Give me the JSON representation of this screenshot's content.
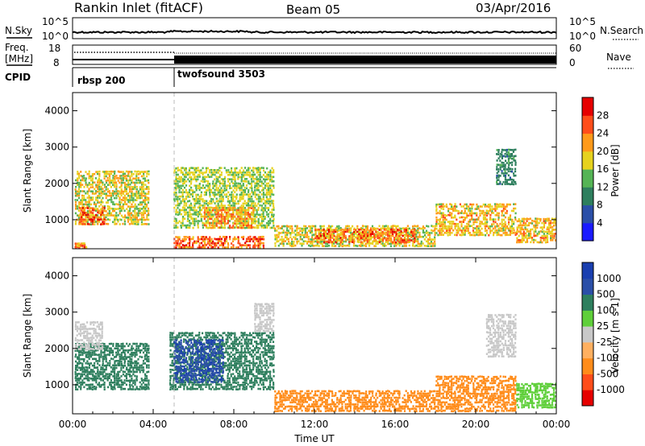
{
  "header": {
    "station": "Rankin Inlet (fitACF)",
    "beam": "Beam 05",
    "date": "03/Apr/2016"
  },
  "params_panel": {
    "left_labels": [
      "N.Sky",
      "Freq.",
      "[MHz]",
      "CPID"
    ],
    "right_labels": [
      "N.Search",
      "Nave"
    ],
    "left_ticks_top": [
      "10^5",
      "10^0"
    ],
    "right_ticks_top": [
      "10^5",
      "10^0"
    ],
    "left_ticks_freq": [
      "18",
      "8"
    ],
    "right_ticks_nave": [
      "60",
      "0"
    ],
    "cpid_labels": [
      "rbsp 200",
      "twofsound 3503"
    ],
    "cpid_switch_hour": 5.0
  },
  "chart_data": [
    {
      "type": "heatmap",
      "title": "",
      "xlabel": "",
      "ylabel": "Slant Range [km]",
      "ylim": [
        200,
        4500
      ],
      "xlim": [
        0,
        24
      ],
      "y_ticks": [
        "1000",
        "2000",
        "3000",
        "4000"
      ],
      "colorbar": {
        "label": "Power [dB]",
        "ticks": [
          "4",
          "8",
          "12",
          "16",
          "20",
          "24",
          "28"
        ],
        "colors": [
          "#1a1aff",
          "#2b4fa8",
          "#2e7f5e",
          "#55b455",
          "#e6d21e",
          "#ff9a1a",
          "#ff4d1a",
          "#e60000"
        ]
      },
      "regions": [
        {
          "x": [
            0.1,
            3.8
          ],
          "y": [
            900,
            2400
          ],
          "value": 18
        },
        {
          "x": [
            0.3,
            1.6
          ],
          "y": [
            900,
            1400
          ],
          "value": 26
        },
        {
          "x": [
            0.1,
            0.8
          ],
          "y": [
            200,
            400
          ],
          "value": 24
        },
        {
          "x": [
            5.0,
            10.0
          ],
          "y": [
            800,
            2500
          ],
          "value": 16
        },
        {
          "x": [
            6.5,
            9.0
          ],
          "y": [
            800,
            1400
          ],
          "value": 22
        },
        {
          "x": [
            5.0,
            9.5
          ],
          "y": [
            200,
            600
          ],
          "value": 25
        },
        {
          "x": [
            10.0,
            18.0
          ],
          "y": [
            300,
            900
          ],
          "value": 18
        },
        {
          "x": [
            12.0,
            17.0
          ],
          "y": [
            400,
            800
          ],
          "value": 24
        },
        {
          "x": [
            18.0,
            22.0
          ],
          "y": [
            600,
            1500
          ],
          "value": 20
        },
        {
          "x": [
            21.0,
            22.0
          ],
          "y": [
            2000,
            3000
          ],
          "value": 10
        },
        {
          "x": [
            22.0,
            24.0
          ],
          "y": [
            400,
            1100
          ],
          "value": 20
        }
      ]
    },
    {
      "type": "heatmap",
      "title": "",
      "xlabel": "Time UT",
      "ylabel": "Slant Range [km]",
      "ylim": [
        200,
        4500
      ],
      "xlim": [
        0,
        24
      ],
      "x_ticks": [
        "00:00",
        "04:00",
        "08:00",
        "12:00",
        "16:00",
        "20:00",
        "00:00"
      ],
      "y_ticks": [
        "1000",
        "2000",
        "3000",
        "4000"
      ],
      "colorbar": {
        "label": "Velocity [m s-1]",
        "ticks": [
          "-1000",
          "-500",
          "-100",
          "-25",
          "25",
          "100",
          "500",
          "1000"
        ],
        "colors": [
          "#e60000",
          "#ff4d1a",
          "#ff8c1a",
          "#ffb060",
          "#c8c8c8",
          "#5fcf3a",
          "#2e7f5e",
          "#2b4fa8",
          "#1a3fb0"
        ]
      },
      "regions": [
        {
          "x": [
            0.1,
            3.8
          ],
          "y": [
            900,
            2200
          ],
          "value": 300
        },
        {
          "x": [
            0.1,
            1.5
          ],
          "y": [
            2000,
            2800
          ],
          "value": 0
        },
        {
          "x": [
            4.8,
            10.0
          ],
          "y": [
            900,
            2500
          ],
          "value": 400
        },
        {
          "x": [
            5.0,
            7.5
          ],
          "y": [
            1100,
            2300
          ],
          "value": 900
        },
        {
          "x": [
            9.0,
            10.0
          ],
          "y": [
            2500,
            3300
          ],
          "value": 0
        },
        {
          "x": [
            10.0,
            18.0
          ],
          "y": [
            300,
            900
          ],
          "value": -300
        },
        {
          "x": [
            18.0,
            22.0
          ],
          "y": [
            300,
            1300
          ],
          "value": -400
        },
        {
          "x": [
            20.5,
            22.0
          ],
          "y": [
            1800,
            3000
          ],
          "value": 0
        },
        {
          "x": [
            22.0,
            24.0
          ],
          "y": [
            400,
            1100
          ],
          "value": 80
        }
      ]
    }
  ]
}
